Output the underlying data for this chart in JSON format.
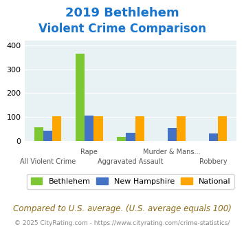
{
  "title_line1": "2019 Bethlehem",
  "title_line2": "Violent Crime Comparison",
  "categories": [
    "All Violent Crime",
    "Rape",
    "Aggravated Assault",
    "Murder & Mans...",
    "Robbery"
  ],
  "categories_top": [
    "",
    "Rape",
    "",
    "Murder & Mans...",
    ""
  ],
  "categories_bottom": [
    "All Violent Crime",
    "",
    "Aggravated Assault",
    "",
    "Robbery"
  ],
  "bethlehem": [
    57,
    365,
    17,
    0,
    0
  ],
  "new_hampshire": [
    43,
    105,
    35,
    53,
    32
  ],
  "national": [
    103,
    102,
    102,
    102,
    103
  ],
  "color_bethlehem": "#7dc832",
  "color_nh": "#4472c4",
  "color_national": "#ffa500",
  "color_title": "#1874CD",
  "color_bg": "#e8f2f5",
  "color_subtitle": "#8B6914",
  "color_footer": "#888888",
  "ylabel": "",
  "ylim": [
    0,
    420
  ],
  "yticks": [
    0,
    100,
    200,
    300,
    400
  ],
  "legend_labels": [
    "Bethlehem",
    "New Hampshire",
    "National"
  ],
  "note_text": "Compared to U.S. average. (U.S. average equals 100)",
  "footer_text": "© 2025 CityRating.com - https://www.cityrating.com/crime-statistics/"
}
